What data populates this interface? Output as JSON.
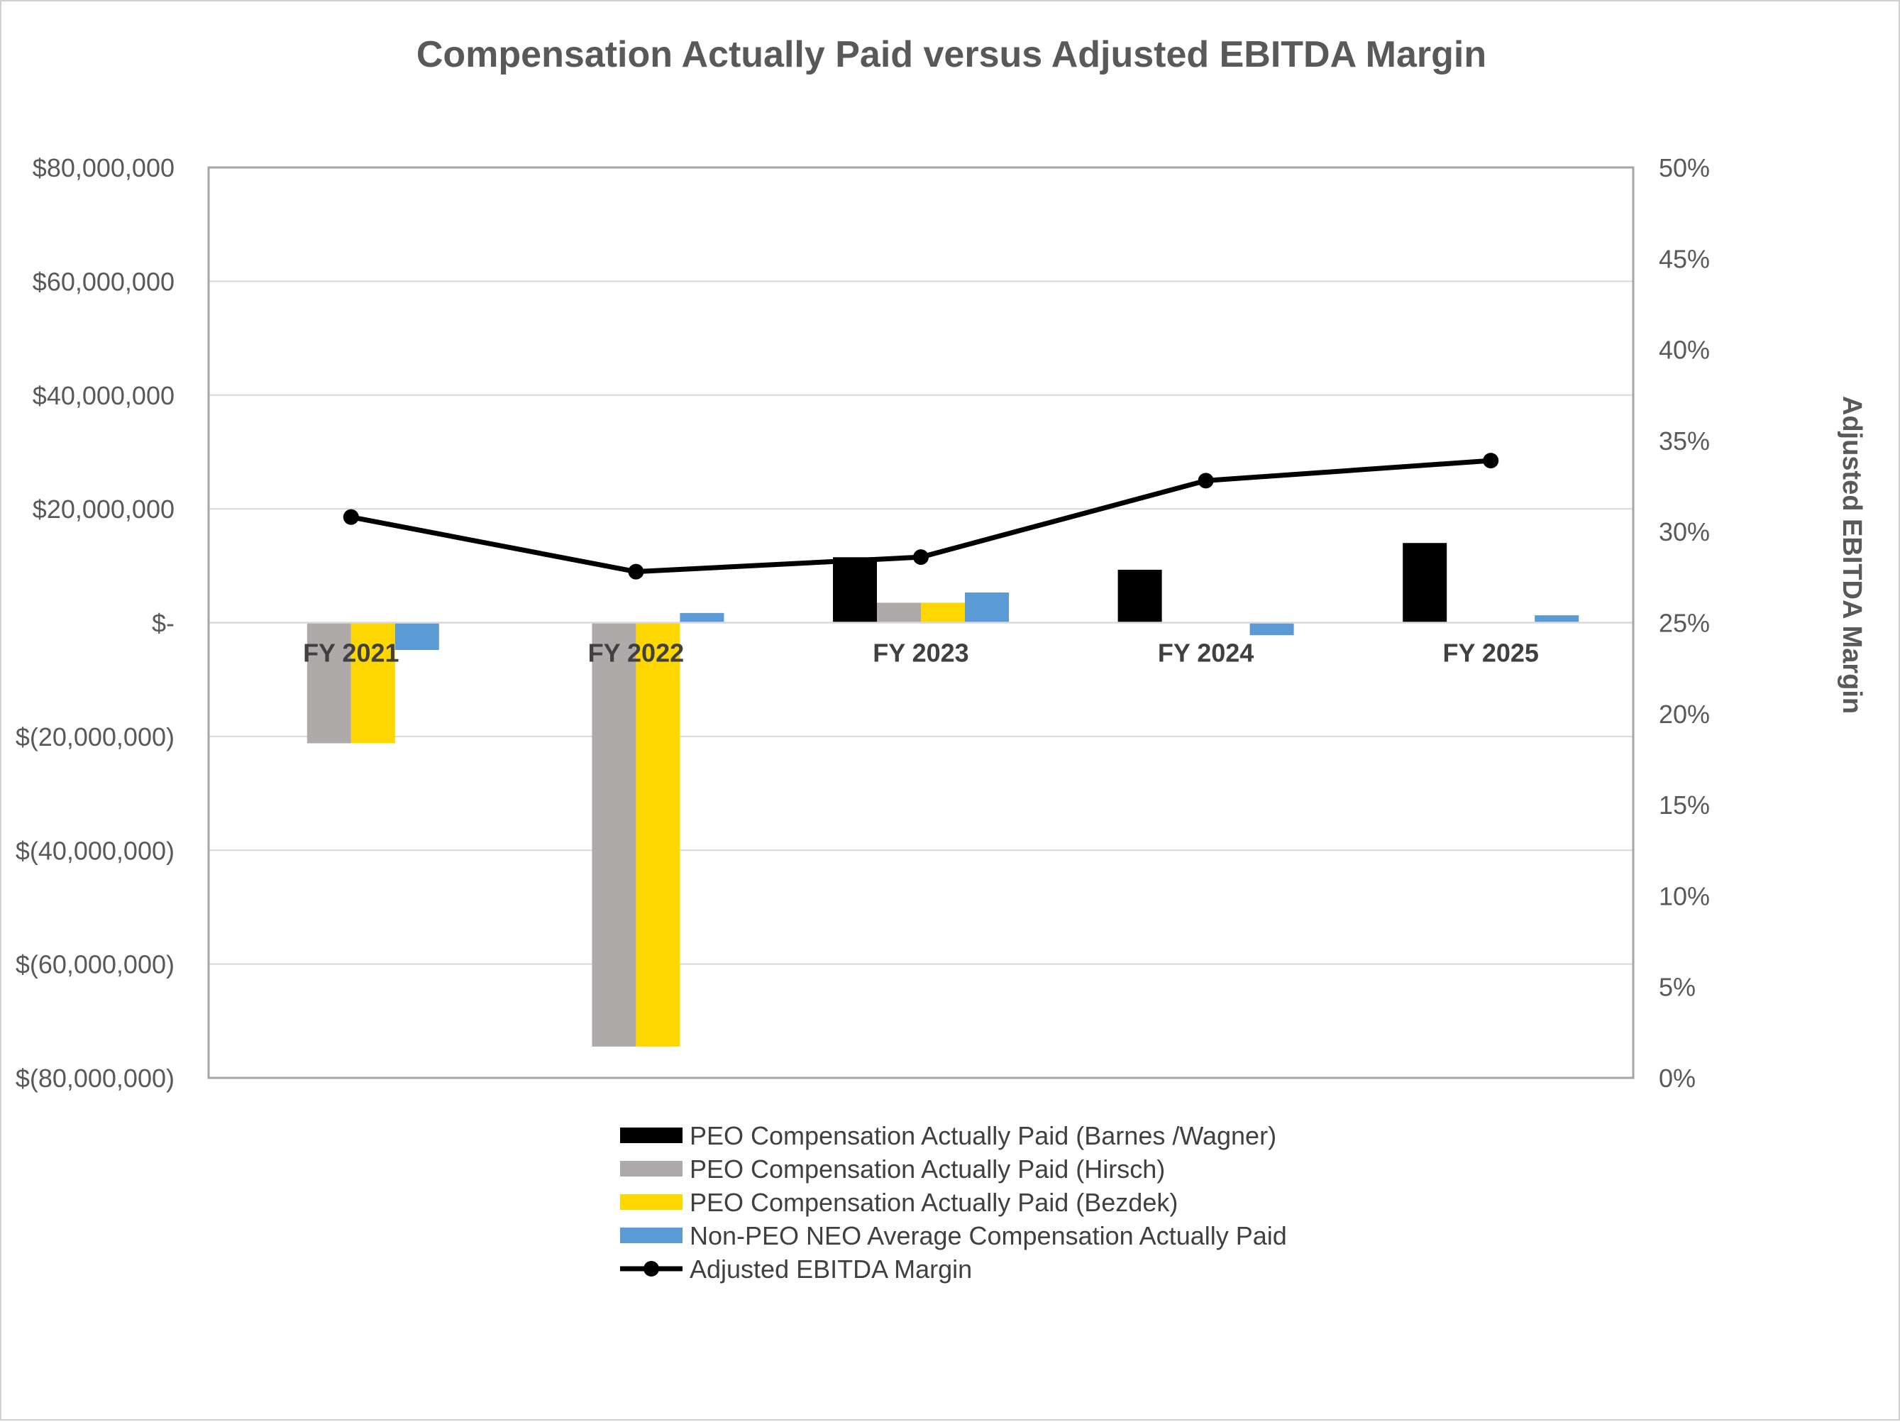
{
  "chart_data": {
    "type": "bar",
    "title": "Compensation Actually Paid versus Adjusted EBITDA Margin",
    "categories": [
      "FY 2021",
      "FY 2022",
      "FY 2023",
      "FY 2024",
      "FY 2025"
    ],
    "y_left": {
      "min": -80000000,
      "max": 80000000,
      "ticks": [
        80000000,
        60000000,
        40000000,
        20000000,
        0,
        -20000000,
        -40000000,
        -60000000,
        -80000000
      ],
      "tick_labels": [
        "$80,000,000",
        "$60,000,000",
        "$40,000,000",
        "$20,000,000",
        "$-",
        "$(20,000,000)",
        "$(40,000,000)",
        "$(60,000,000)",
        "$(80,000,000)"
      ]
    },
    "y_right": {
      "label": "Adjusted EBITDA Margin",
      "min": 0,
      "max": 50,
      "ticks": [
        50,
        45,
        40,
        35,
        30,
        25,
        20,
        15,
        10,
        5,
        0
      ],
      "tick_labels": [
        "50%",
        "45%",
        "40%",
        "35%",
        "30%",
        "25%",
        "20%",
        "15%",
        "10%",
        "5%",
        "0%"
      ]
    },
    "series": [
      {
        "name": "PEO Compensation Actually Paid (Barnes /Wagner)",
        "type": "bar",
        "color": "#000000",
        "values": [
          null,
          null,
          11500000,
          9300000,
          14000000
        ]
      },
      {
        "name": "PEO Compensation Actually Paid (Hirsch)",
        "type": "bar",
        "color": "#aeaaaa",
        "values": [
          -21200000,
          -74500000,
          3500000,
          null,
          null
        ]
      },
      {
        "name": "PEO Compensation Actually Paid (Bezdek)",
        "type": "bar",
        "color": "#ffd700",
        "values": [
          -21200000,
          -74500000,
          3500000,
          null,
          null
        ]
      },
      {
        "name": "Non-PEO NEO Average Compensation Actually Paid",
        "type": "bar",
        "color": "#5b9bd5",
        "values": [
          -4800000,
          1700000,
          5300000,
          -2200000,
          1300000
        ]
      },
      {
        "name": "Adjusted EBITDA Margin",
        "type": "line",
        "axis": "right",
        "color": "#000000",
        "values": [
          30.8,
          27.8,
          28.6,
          32.8,
          33.9
        ]
      }
    ],
    "grid": true,
    "legend_position": "bottom"
  }
}
